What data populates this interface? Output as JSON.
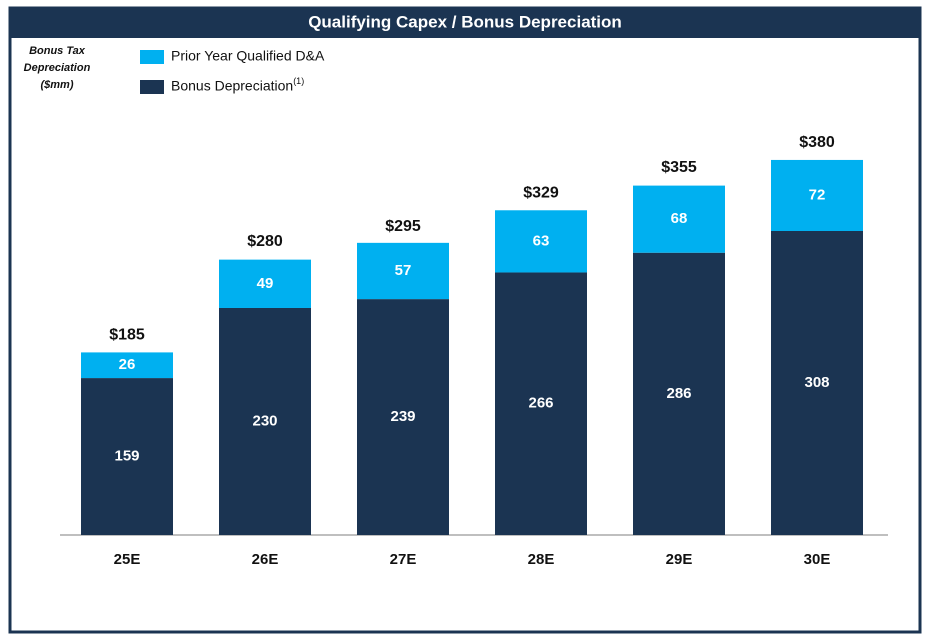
{
  "chart_data": {
    "type": "stacked_bar",
    "title": "Qualifying Capex / Bonus Depreciation",
    "y_label": [
      "Bonus Tax",
      "Depreciation",
      "($mm)"
    ],
    "categories": [
      "25E",
      "26E",
      "27E",
      "28E",
      "29E",
      "30E"
    ],
    "series": [
      {
        "name": "Bonus Depreciation",
        "note": "(1)",
        "color": "#1b3452",
        "values": [
          159,
          230,
          239,
          266,
          286,
          308
        ]
      },
      {
        "name": "Prior Year Qualified D&A",
        "color": "#00b0f0",
        "values": [
          26,
          49,
          57,
          63,
          68,
          72
        ]
      }
    ],
    "totals": [
      185,
      280,
      295,
      329,
      355,
      380
    ],
    "total_labels": [
      "$185",
      "$280",
      "$295",
      "$329",
      "$355",
      "$380"
    ]
  }
}
